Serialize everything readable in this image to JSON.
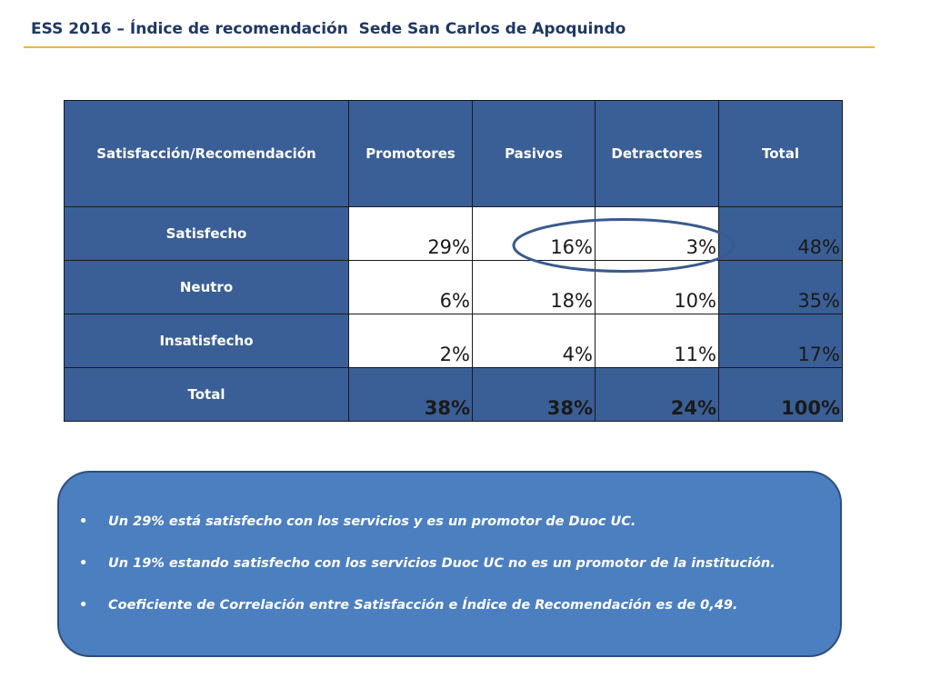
{
  "title": "ESS 2016 – Índice de recomendación  Sede San Carlos de Apoquindo",
  "colors": {
    "header_blue": "#3a5f96",
    "title_text": "#1f3864",
    "title_rule": "#f2b632",
    "note_box": "#4c7fc0"
  },
  "chart_data": {
    "type": "table",
    "columns": [
      "Satisfacción/Recomendación",
      "Promotores",
      "Pasivos",
      "Detractores",
      "Total"
    ],
    "rows": [
      {
        "label": "Satisfecho",
        "values": [
          "29%",
          "16%",
          "3%",
          "48%"
        ]
      },
      {
        "label": "Neutro",
        "values": [
          "6%",
          "18%",
          "10%",
          "35%"
        ]
      },
      {
        "label": "Insatisfecho",
        "values": [
          "2%",
          "4%",
          "11%",
          "17%"
        ]
      },
      {
        "label": "Total",
        "values": [
          "38%",
          "38%",
          "24%",
          "100%"
        ]
      }
    ]
  },
  "notes": [
    "Un 29% está satisfecho con los servicios y es un promotor de Duoc UC.",
    "Un 19% estando satisfecho con los servicios Duoc UC no es un promotor de la institución.",
    "Coeficiente de Correlación entre Satisfacción e Índice de Recomendación es de 0,49."
  ],
  "bullet_char": "•"
}
